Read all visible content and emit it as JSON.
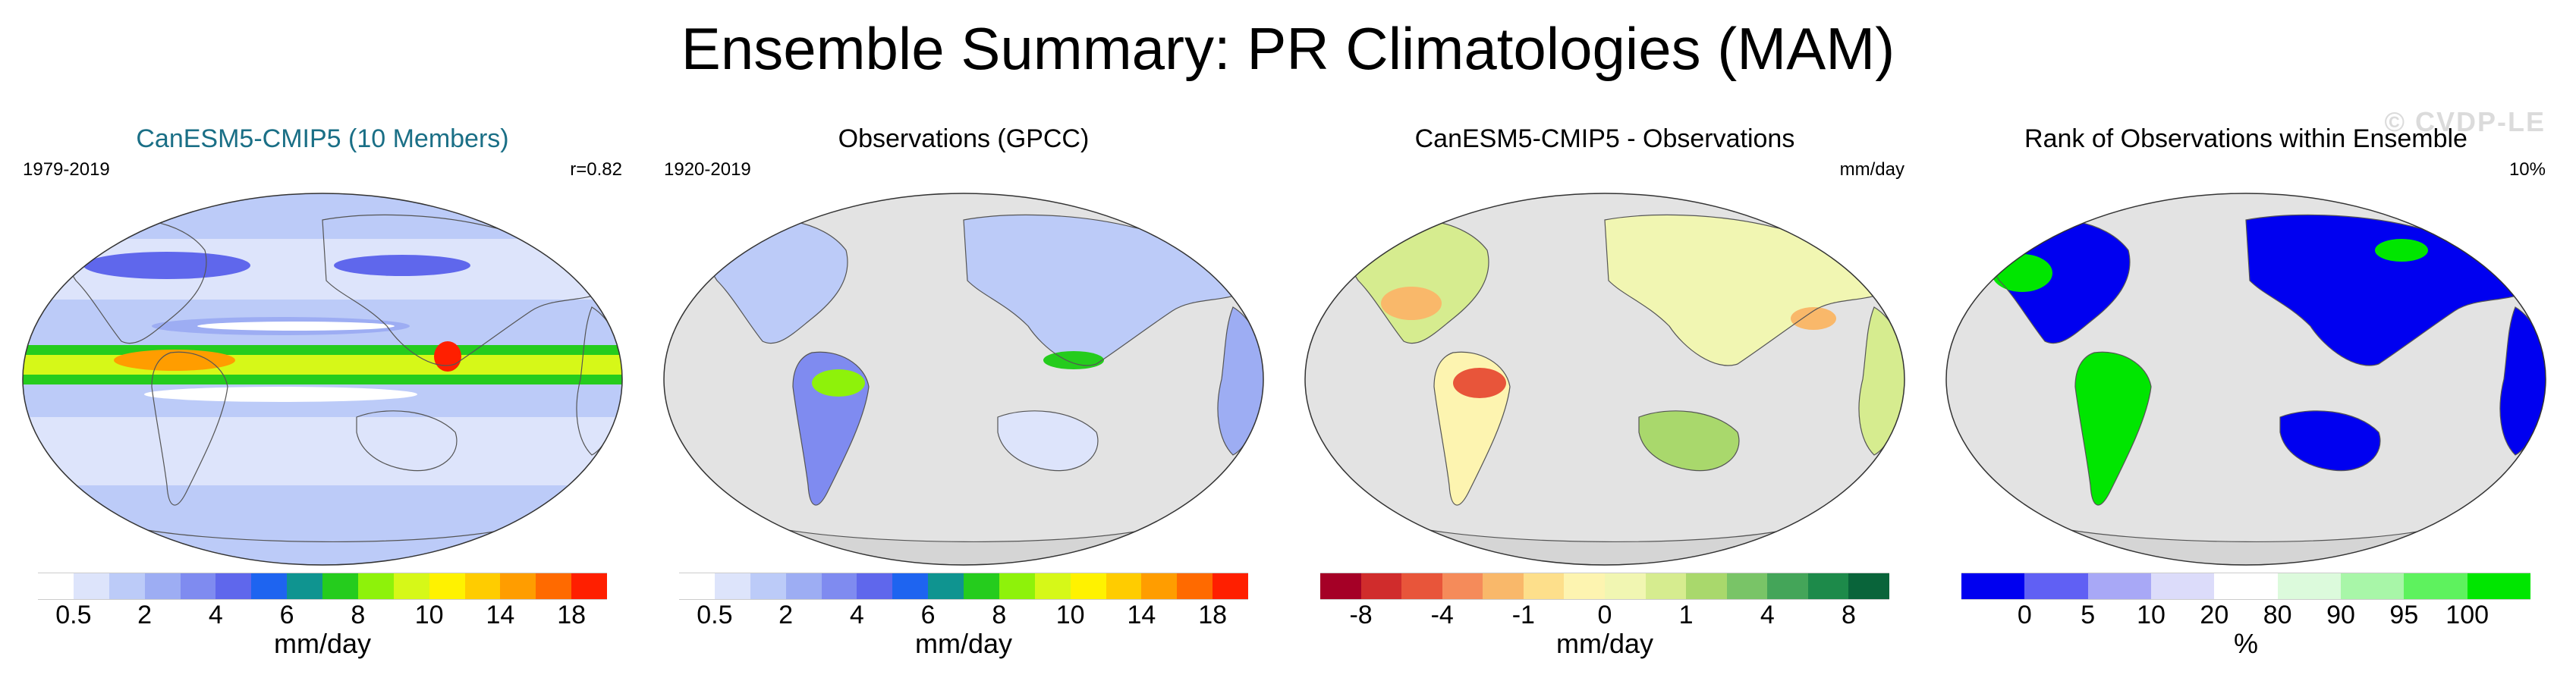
{
  "title": "Ensemble Summary: PR Climatologies (MAM)",
  "watermark": "© CVDP-LE",
  "colors": {
    "ocean_gray": "#e3e3e3",
    "land_gray": "#d9d9d9",
    "coast": "#555555"
  },
  "panels": [
    {
      "title": "CanESM5-CMIP5 (10 Members)",
      "title_color": "#1a6f86",
      "left_label": "1979-2019",
      "right_label": "r=0.82",
      "map_kind": "model",
      "units": "mm/day",
      "colorbar": [
        "#ffffff",
        "#dde4fb",
        "#bccbf8",
        "#9dadf3",
        "#7f8bf0",
        "#5f67ec",
        "#1e64f0",
        "#0f9490",
        "#25cc1d",
        "#8ef20a",
        "#d6f818",
        "#fff200",
        "#ffcc00",
        "#ff9d00",
        "#ff6a00",
        "#ff1f00"
      ],
      "tick_labels": [
        "0.5",
        "2",
        "4",
        "6",
        "8",
        "10",
        "14",
        "18"
      ],
      "tick_index": [
        1,
        3,
        5,
        7,
        9,
        11,
        13,
        15
      ]
    },
    {
      "title": "Observations (GPCC)",
      "title_color": "#000000",
      "left_label": "1920-2019",
      "right_label": "",
      "map_kind": "obs",
      "units": "mm/day",
      "colorbar": [
        "#ffffff",
        "#dde4fb",
        "#bccbf8",
        "#9dadf3",
        "#7f8bf0",
        "#5f67ec",
        "#1e64f0",
        "#0f9490",
        "#25cc1d",
        "#8ef20a",
        "#d6f818",
        "#fff200",
        "#ffcc00",
        "#ff9d00",
        "#ff6a00",
        "#ff1f00"
      ],
      "tick_labels": [
        "0.5",
        "2",
        "4",
        "6",
        "8",
        "10",
        "14",
        "18"
      ],
      "tick_index": [
        1,
        3,
        5,
        7,
        9,
        11,
        13,
        15
      ]
    },
    {
      "title": "CanESM5-CMIP5 - Observations",
      "title_color": "#000000",
      "left_label": "",
      "right_label": "mm/day",
      "map_kind": "diff",
      "units": "mm/day",
      "colorbar": [
        "#a50026",
        "#d02c2c",
        "#e8553a",
        "#f58b5a",
        "#f9b86a",
        "#fddf8b",
        "#fdf4b0",
        "#f1f6b2",
        "#d6ec8f",
        "#a9d86c",
        "#79c467",
        "#44a559",
        "#1d8a4a",
        "#09643a"
      ],
      "tick_labels": [
        "-8",
        "-4",
        "-1",
        "0",
        "1",
        "4",
        "8"
      ],
      "tick_index": [
        1,
        3,
        5,
        7,
        9,
        11,
        13
      ]
    },
    {
      "title": "Rank of Observations within Ensemble",
      "title_color": "#000000",
      "left_label": "",
      "right_label": "10%",
      "map_kind": "rank",
      "units": "%",
      "colorbar": [
        "#0000f0",
        "#6060f4",
        "#a8a8f6",
        "#dcdcfa",
        "#ffffff",
        "#dcfadc",
        "#a8f6a8",
        "#5ef25e",
        "#00e600"
      ],
      "tick_labels": [
        "0",
        "5",
        "10",
        "20",
        "80",
        "90",
        "95",
        "100"
      ],
      "tick_index": [
        1,
        2,
        3,
        4,
        5,
        6,
        7,
        8
      ]
    }
  ],
  "chart_data": [
    {
      "type": "heatmap",
      "title": "CanESM5-CMIP5 (10 Members)",
      "period": "1979-2019",
      "pattern_correlation": 0.82,
      "colorbar_label": "mm/day",
      "colorbar_ticks": [
        0.5,
        2,
        4,
        6,
        8,
        10,
        14,
        18
      ]
    },
    {
      "type": "heatmap",
      "title": "Observations (GPCC)",
      "period": "1920-2019",
      "colorbar_label": "mm/day",
      "colorbar_ticks": [
        0.5,
        2,
        4,
        6,
        8,
        10,
        14,
        18
      ]
    },
    {
      "type": "heatmap",
      "title": "CanESM5-CMIP5 - Observations",
      "colorbar_label": "mm/day",
      "colorbar_ticks": [
        -8,
        -4,
        -1,
        0,
        1,
        4,
        8
      ]
    },
    {
      "type": "heatmap",
      "title": "Rank of Observations within Ensemble",
      "annotation": "10%",
      "colorbar_label": "%",
      "colorbar_ticks": [
        0,
        5,
        10,
        20,
        80,
        90,
        95,
        100
      ]
    }
  ]
}
